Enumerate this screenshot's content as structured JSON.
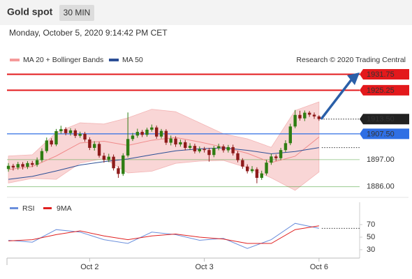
{
  "header": {
    "title": "Gold spot",
    "interval": "30 MIN",
    "timestamp": "Monday, October 5, 2020 9:14:42 PM CET"
  },
  "chart_data": [
    {
      "type": "candlestick",
      "legend": [
        "MA 20 + Bollinger Bands",
        "MA 50"
      ],
      "source": "Research © 2020 Trading Central",
      "xlim": [
        -0.3,
        73.5
      ],
      "xticks": [
        {
          "value": 17,
          "label": "Oct 2"
        },
        {
          "value": 41,
          "label": "Oct 3"
        },
        {
          "value": 65,
          "label": "Oct 6"
        }
      ],
      "ylim": [
        1882.5,
        1935
      ],
      "up_color": "#2f7d12",
      "down_color": "#8e1b1b",
      "open": [
        1893.2,
        1894.5,
        1893.8,
        1895.2,
        1894.1,
        1895.6,
        1894.9,
        1896.8,
        1900.5,
        1904.8,
        1903.2,
        1908.6,
        1909.4,
        1907.8,
        1908.9,
        1906.7,
        1907.5,
        1905.2,
        1901.8,
        1903.4,
        1898.6,
        1896.9,
        1898.2,
        1893.5,
        1891.2,
        1898.7,
        1905.4,
        1906.8,
        1908.3,
        1907.1,
        1909.2,
        1910.1,
        1906.4,
        1908.7,
        1903.9,
        1905.6,
        1903.2,
        1904.1,
        1901.8,
        1902.6,
        1900.4,
        1901.3,
        1900.9,
        1898.9,
        1901.7,
        1902.4,
        1900.8,
        1902.1,
        1899.6,
        1896.8,
        1894.2,
        1892.3,
        1893.1,
        1889.6,
        1891.4,
        1895.8,
        1898.3,
        1897.6,
        1900.9,
        1903.7,
        1910.5,
        1915.2,
        1913.8,
        1916.1,
        1915.3,
        1914.6
      ],
      "high": [
        1895.6,
        1895.3,
        1896.1,
        1896.0,
        1896.4,
        1896.5,
        1897.9,
        1901.6,
        1906.0,
        1905.7,
        1909.5,
        1910.8,
        1910.2,
        1909.8,
        1909.6,
        1908.4,
        1908.3,
        1906.1,
        1904.5,
        1904.2,
        1899.8,
        1899.4,
        1899.1,
        1894.3,
        1899.6,
        1916.2,
        1907.9,
        1909.6,
        1909.1,
        1910.0,
        1911.3,
        1910.9,
        1909.5,
        1909.4,
        1906.8,
        1906.5,
        1905.2,
        1905.0,
        1903.7,
        1903.5,
        1902.4,
        1902.2,
        1901.8,
        1902.6,
        1903.5,
        1903.2,
        1903.0,
        1903.1,
        1900.5,
        1897.6,
        1895.1,
        1894.4,
        1893.9,
        1892.5,
        1896.9,
        1899.4,
        1899.1,
        1901.8,
        1904.9,
        1911.6,
        1917.2,
        1916.9,
        1917.0,
        1916.8,
        1916.2,
        1915.1
      ],
      "low": [
        1892.1,
        1892.6,
        1892.9,
        1893.0,
        1893.2,
        1894.0,
        1894.1,
        1896.0,
        1899.7,
        1902.3,
        1902.5,
        1907.6,
        1906.9,
        1906.8,
        1905.8,
        1905.9,
        1904.3,
        1900.9,
        1900.7,
        1897.8,
        1895.8,
        1896.0,
        1892.6,
        1889.6,
        1890.4,
        1897.9,
        1904.6,
        1905.9,
        1906.2,
        1906.3,
        1908.4,
        1905.5,
        1905.6,
        1903.0,
        1902.8,
        1902.2,
        1902.3,
        1900.8,
        1900.9,
        1899.5,
        1899.7,
        1899.9,
        1896.2,
        1898.0,
        1900.8,
        1899.9,
        1899.9,
        1898.7,
        1895.9,
        1893.3,
        1891.4,
        1891.5,
        1887.4,
        1888.8,
        1890.6,
        1894.9,
        1896.5,
        1896.8,
        1900.1,
        1902.9,
        1909.8,
        1912.9,
        1912.7,
        1914.4,
        1913.6,
        1912.8
      ],
      "close": [
        1894.5,
        1893.8,
        1895.2,
        1894.1,
        1895.6,
        1894.9,
        1896.8,
        1900.5,
        1904.8,
        1903.2,
        1908.6,
        1909.4,
        1907.8,
        1908.9,
        1906.7,
        1907.5,
        1905.2,
        1901.8,
        1903.4,
        1898.6,
        1896.9,
        1898.2,
        1893.5,
        1891.2,
        1898.7,
        1905.4,
        1906.8,
        1908.3,
        1907.1,
        1909.2,
        1910.1,
        1906.4,
        1908.7,
        1903.9,
        1905.6,
        1903.2,
        1904.1,
        1901.8,
        1902.6,
        1900.4,
        1901.3,
        1900.9,
        1898.9,
        1901.7,
        1902.4,
        1900.8,
        1902.1,
        1899.6,
        1896.8,
        1894.2,
        1892.3,
        1893.1,
        1889.6,
        1891.4,
        1895.8,
        1898.3,
        1897.6,
        1900.9,
        1903.7,
        1910.5,
        1915.2,
        1913.8,
        1916.1,
        1915.3,
        1914.6,
        1913.5
      ],
      "indicator_x": [
        0,
        5,
        10,
        15,
        20,
        25,
        30,
        35,
        40,
        45,
        50,
        55,
        60,
        65
      ],
      "bands": {
        "color": "#f9d6d6",
        "upper": [
          1898.5,
          1899.0,
          1908.0,
          1912.0,
          1911.5,
          1914.0,
          1917.5,
          1916.5,
          1912.0,
          1907.5,
          1905.5,
          1902.0,
          1917.0,
          1920.5
        ],
        "lower": [
          1887.5,
          1889.4,
          1889.0,
          1895.6,
          1897.5,
          1891.6,
          1892.3,
          1895.5,
          1896.4,
          1896.7,
          1893.7,
          1889.6,
          1884.5,
          1892.0
        ]
      },
      "series": [
        {
          "name": "MA 20 + Bollinger Bands",
          "color": "#f08a8a",
          "values": [
            1893.0,
            1894.2,
            1898.5,
            1903.8,
            1904.5,
            1902.8,
            1904.9,
            1906.0,
            1904.2,
            1902.1,
            1899.6,
            1895.8,
            1898.4,
            1906.2
          ]
        },
        {
          "name": "MA 50",
          "color": "#2c4f96",
          "values": [
            1889.0,
            1890.2,
            1892.4,
            1894.8,
            1896.2,
            1897.3,
            1899.0,
            1900.6,
            1901.4,
            1901.8,
            1900.8,
            1899.4,
            1900.3,
            1901.9
          ]
        }
      ],
      "price_levels": [
        {
          "value": 1931.75,
          "color": "#e3191c",
          "style": "box"
        },
        {
          "value": 1925.25,
          "color": "#e3191c",
          "style": "box"
        },
        {
          "value": 1913.5,
          "label": "1913.50",
          "color": "#222222",
          "style": "current"
        },
        {
          "value": 1907.5,
          "label": "1907.50",
          "color": "#2f6fe4",
          "style": "box"
        },
        {
          "value": 1897,
          "label": "1897.00",
          "color": "#3d9a2a",
          "style": "text"
        },
        {
          "value": 1886,
          "label": "1886.00",
          "color": "#3d9a2a",
          "style": "text"
        }
      ]
    },
    {
      "type": "line",
      "x": [
        0,
        5,
        10,
        15,
        20,
        25,
        30,
        35,
        40,
        45,
        50,
        55,
        60,
        65
      ],
      "ylim": [
        20,
        105
      ],
      "yticks": [
        70,
        50,
        30
      ],
      "series": [
        {
          "name": "RSI",
          "color": "#6b8fdc",
          "values": [
            45,
            42,
            62,
            58,
            46,
            40,
            58,
            54,
            45,
            48,
            32,
            46,
            72,
            64
          ]
        },
        {
          "name": "9MA",
          "color": "#e02020",
          "values": [
            44,
            46,
            54,
            60,
            52,
            46,
            52,
            55,
            50,
            47,
            40,
            40,
            62,
            68
          ]
        }
      ]
    }
  ]
}
